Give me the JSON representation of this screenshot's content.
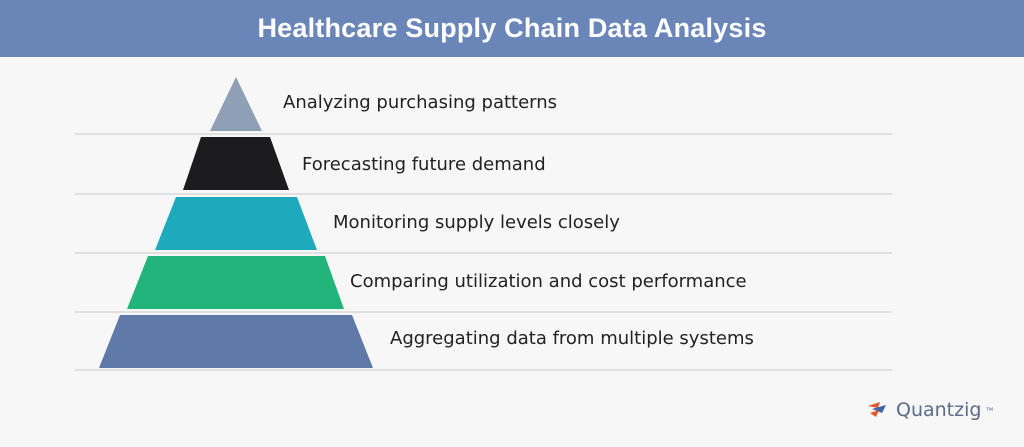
{
  "title": "Healthcare Supply Chain Data Analysis",
  "colors": {
    "header_bg": "#6a86b8",
    "divider": "#c9c9c9"
  },
  "levels": [
    {
      "label": "Analyzing purchasing patterns",
      "color": "#8fa0b6"
    },
    {
      "label": "Forecasting future demand",
      "color": "#1c1c1e"
    },
    {
      "label": "Monitoring supply levels closely",
      "color": "#1fa9bd"
    },
    {
      "label": "Comparing utilization and cost performance",
      "color": "#22b47a"
    },
    {
      "label": "Aggregating data from multiple systems",
      "color": "#5f7aa8"
    }
  ],
  "logo": {
    "text": "Quantzig",
    "tm": "™",
    "icon": "quantzig-logo-icon",
    "colors": [
      "#e0582b",
      "#3f63a8"
    ]
  }
}
